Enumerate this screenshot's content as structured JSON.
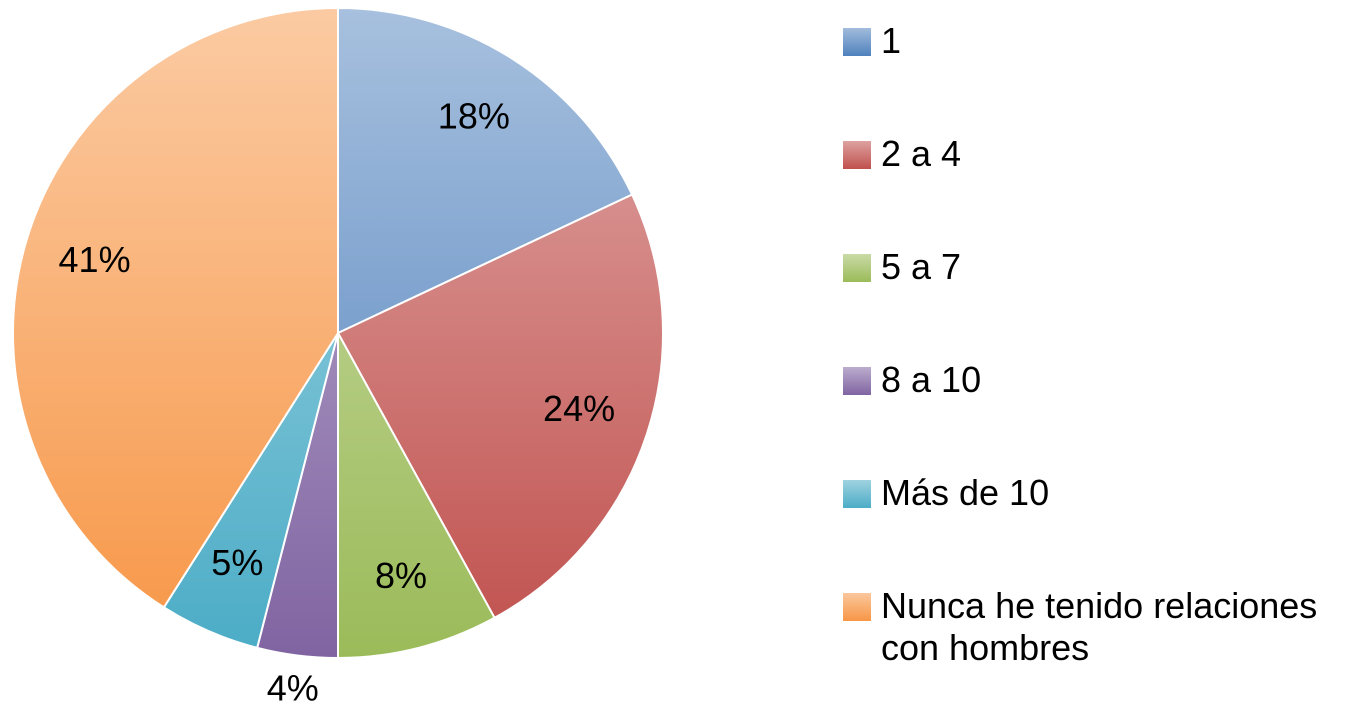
{
  "chart_data": {
    "type": "pie",
    "categories": [
      "1",
      "2 a 4",
      "5 a 7",
      "8 a 10",
      "Más de 10",
      "Nunca he tenido relaciones con hombres"
    ],
    "values": [
      18,
      24,
      8,
      4,
      5,
      41
    ],
    "value_labels": [
      "18%",
      "24%",
      "8%",
      "4%",
      "5%",
      "41%"
    ],
    "colors": [
      "#4f81bd",
      "#c0504d",
      "#9bbb59",
      "#8064a2",
      "#4bacc6",
      "#f79646"
    ],
    "legend": "right"
  }
}
